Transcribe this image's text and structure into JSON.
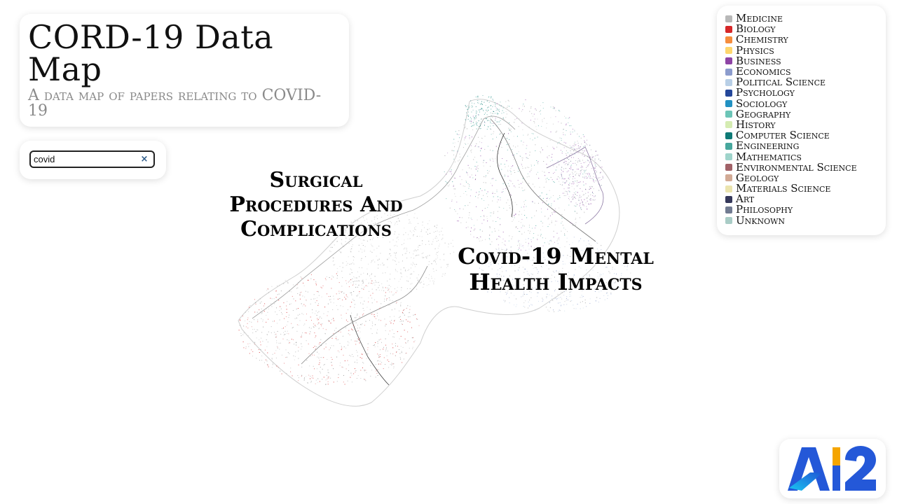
{
  "header": {
    "title": "CORD-19 Data Map",
    "subtitle": "A data map of papers relating to COVID-19"
  },
  "search": {
    "value": "covid",
    "placeholder": "",
    "clear_icon": "×"
  },
  "legend": {
    "items": [
      {
        "label": "Medicine",
        "color": "#b8b8b8"
      },
      {
        "label": "Biology",
        "color": "#d62728"
      },
      {
        "label": "Chemistry",
        "color": "#f58d3d"
      },
      {
        "label": "Physics",
        "color": "#fed66e"
      },
      {
        "label": "Business",
        "color": "#8e44a5"
      },
      {
        "label": "Economics",
        "color": "#8c9ccd"
      },
      {
        "label": "Political Science",
        "color": "#b8cfe6"
      },
      {
        "label": "Psychology",
        "color": "#24479a"
      },
      {
        "label": "Sociology",
        "color": "#2291c2"
      },
      {
        "label": "Geography",
        "color": "#6cc5b7"
      },
      {
        "label": "History",
        "color": "#d5ecb2"
      },
      {
        "label": "Computer Science",
        "color": "#0e7a76"
      },
      {
        "label": "Engineering",
        "color": "#47a79d"
      },
      {
        "label": "Mathematics",
        "color": "#9fd4cb"
      },
      {
        "label": "Environmental Science",
        "color": "#a16268"
      },
      {
        "label": "Geology",
        "color": "#d2aa95"
      },
      {
        "label": "Materials Science",
        "color": "#ebe4ae"
      },
      {
        "label": "Art",
        "color": "#35385a"
      },
      {
        "label": "Philosophy",
        "color": "#717b91"
      },
      {
        "label": "Unknown",
        "color": "#a9ccc6"
      }
    ]
  },
  "clusters": {
    "surgical": "Surgical Procedures And Complications",
    "mental": "Covid-19 Mental Health Impacts"
  },
  "logo": {
    "text": "AI2"
  }
}
